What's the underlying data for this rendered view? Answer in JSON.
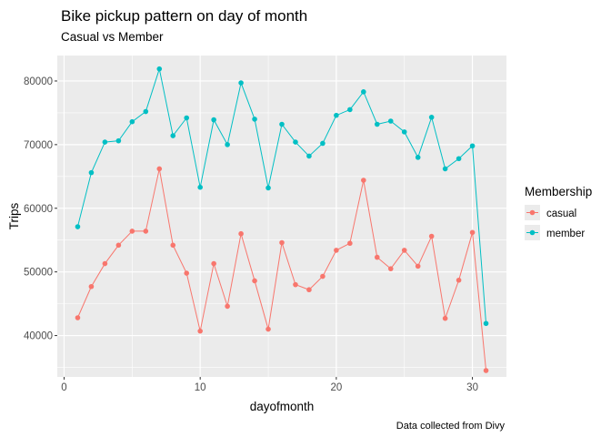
{
  "chart_data": {
    "type": "line",
    "title": "Bike pickup pattern on day of month",
    "subtitle": "Casual vs Member",
    "xlabel": "dayofmonth",
    "ylabel": "Trips",
    "caption": "Data collected from Divy",
    "legend_title": "Membership",
    "legend_position": "right",
    "grid": true,
    "xlim": [
      -0.5,
      32.5
    ],
    "ylim": [
      33500,
      84000
    ],
    "x_ticks": [
      0,
      10,
      20,
      30
    ],
    "y_ticks": [
      40000,
      50000,
      60000,
      70000,
      80000
    ],
    "x_tick_labels": [
      "0",
      "10",
      "20",
      "30"
    ],
    "y_tick_labels": [
      "40000",
      "50000",
      "60000",
      "70000",
      "80000"
    ],
    "x": [
      1,
      2,
      3,
      4,
      5,
      6,
      7,
      8,
      9,
      10,
      11,
      12,
      13,
      14,
      15,
      16,
      17,
      18,
      19,
      20,
      21,
      22,
      23,
      24,
      25,
      26,
      27,
      28,
      29,
      30,
      31
    ],
    "series": [
      {
        "name": "casual",
        "color": "#F8766D",
        "values": [
          42800,
          47700,
          51300,
          54200,
          56400,
          56400,
          66200,
          54200,
          49800,
          40700,
          51300,
          44600,
          56000,
          48600,
          41000,
          54600,
          48000,
          47200,
          49300,
          53400,
          54500,
          64400,
          52300,
          50500,
          53400,
          50900,
          55600,
          42700,
          48700,
          56200,
          34500
        ]
      },
      {
        "name": "member",
        "color": "#00BFC4",
        "values": [
          57100,
          65600,
          70400,
          70600,
          73600,
          75200,
          81900,
          71400,
          74200,
          63300,
          73900,
          70000,
          79700,
          74000,
          63200,
          73200,
          70400,
          68200,
          70200,
          74600,
          75500,
          78300,
          73200,
          73700,
          72000,
          68000,
          74300,
          66200,
          67800,
          69800,
          41900
        ]
      }
    ]
  }
}
